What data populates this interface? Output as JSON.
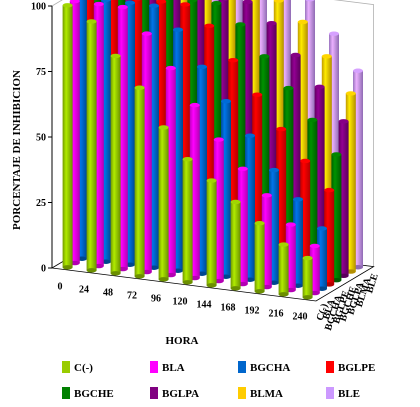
{
  "chart_data": {
    "type": "bar",
    "subtype": "3d-clustered-depth",
    "ylabel": "PORCENTAJE DE INHIBICION",
    "xlabel": "HORA",
    "ylim": [
      0,
      100
    ],
    "y_ticks": [
      "0",
      "25",
      "50",
      "75",
      "100"
    ],
    "categories": [
      "0",
      "24",
      "48",
      "72",
      "96",
      "120",
      "144",
      "168",
      "192",
      "216",
      "240"
    ],
    "depth_labels": [
      "C(-)",
      "BLA",
      "BGCHA",
      "BGLPE",
      "BGCHE",
      "BGLPA",
      "BLMA",
      "BLE"
    ],
    "legend_placement": "bottom",
    "grid": false,
    "series": [
      {
        "name": "C(-)",
        "color": "#99cc00",
        "values": [
          100,
          95,
          83,
          72,
          58,
          47,
          40,
          33,
          26,
          19,
          15
        ]
      },
      {
        "name": "BLA",
        "color": "#ff00ff",
        "values": [
          100,
          100,
          100,
          91,
          79,
          66,
          54,
          44,
          35,
          25,
          18
        ]
      },
      {
        "name": "BGCHA",
        "color": "#0066cc",
        "values": [
          100,
          100,
          100,
          100,
          92,
          79,
          67,
          55,
          43,
          33,
          23
        ]
      },
      {
        "name": "BGLPE",
        "color": "#ff0000",
        "values": [
          100,
          100,
          100,
          100,
          100,
          93,
          81,
          69,
          57,
          46,
          36
        ]
      },
      {
        "name": "BGCHE",
        "color": "#008000",
        "values": [
          100,
          100,
          100,
          100,
          100,
          100,
          93,
          82,
          71,
          60,
          48
        ]
      },
      {
        "name": "BGLPA",
        "color": "#800080",
        "values": [
          100,
          100,
          100,
          100,
          100,
          100,
          100,
          93,
          82,
          71,
          59
        ]
      },
      {
        "name": "BLMA",
        "color": "#ffcc00",
        "values": [
          100,
          100,
          100,
          100,
          100,
          100,
          100,
          100,
          93,
          81,
          68
        ]
      },
      {
        "name": "BLE",
        "color": "#cc99ff",
        "values": [
          100,
          100,
          100,
          100,
          100,
          100,
          100,
          100,
          100,
          88,
          75
        ]
      }
    ]
  }
}
